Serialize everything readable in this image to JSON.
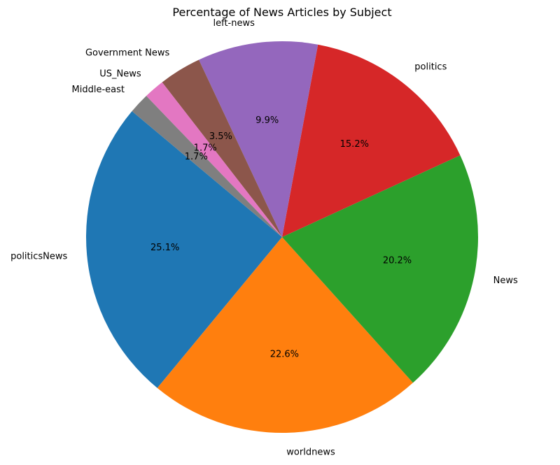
{
  "chart_data": {
    "type": "pie",
    "title": "Percentage of News Articles by Subject",
    "start_angle_deg": 140,
    "direction": "counterclockwise",
    "slices": [
      {
        "label": "politicsNews",
        "value": 25.1,
        "pct_label": "25.1%",
        "color": "#1f77b4"
      },
      {
        "label": "worldnews",
        "value": 22.6,
        "pct_label": "22.6%",
        "color": "#ff7f0e"
      },
      {
        "label": "News",
        "value": 20.2,
        "pct_label": "20.2%",
        "color": "#2ca02c"
      },
      {
        "label": "politics",
        "value": 15.2,
        "pct_label": "15.2%",
        "color": "#d62728"
      },
      {
        "label": "left-news",
        "value": 9.9,
        "pct_label": "9.9%",
        "color": "#9467bd"
      },
      {
        "label": "Government News",
        "value": 3.5,
        "pct_label": "3.5%",
        "color": "#8c564b"
      },
      {
        "label": "US_News",
        "value": 1.7,
        "pct_label": "1.7%",
        "color": "#e377c2"
      },
      {
        "label": "Middle-east",
        "value": 1.7,
        "pct_label": "1.7%",
        "color": "#7f7f7f"
      }
    ]
  }
}
